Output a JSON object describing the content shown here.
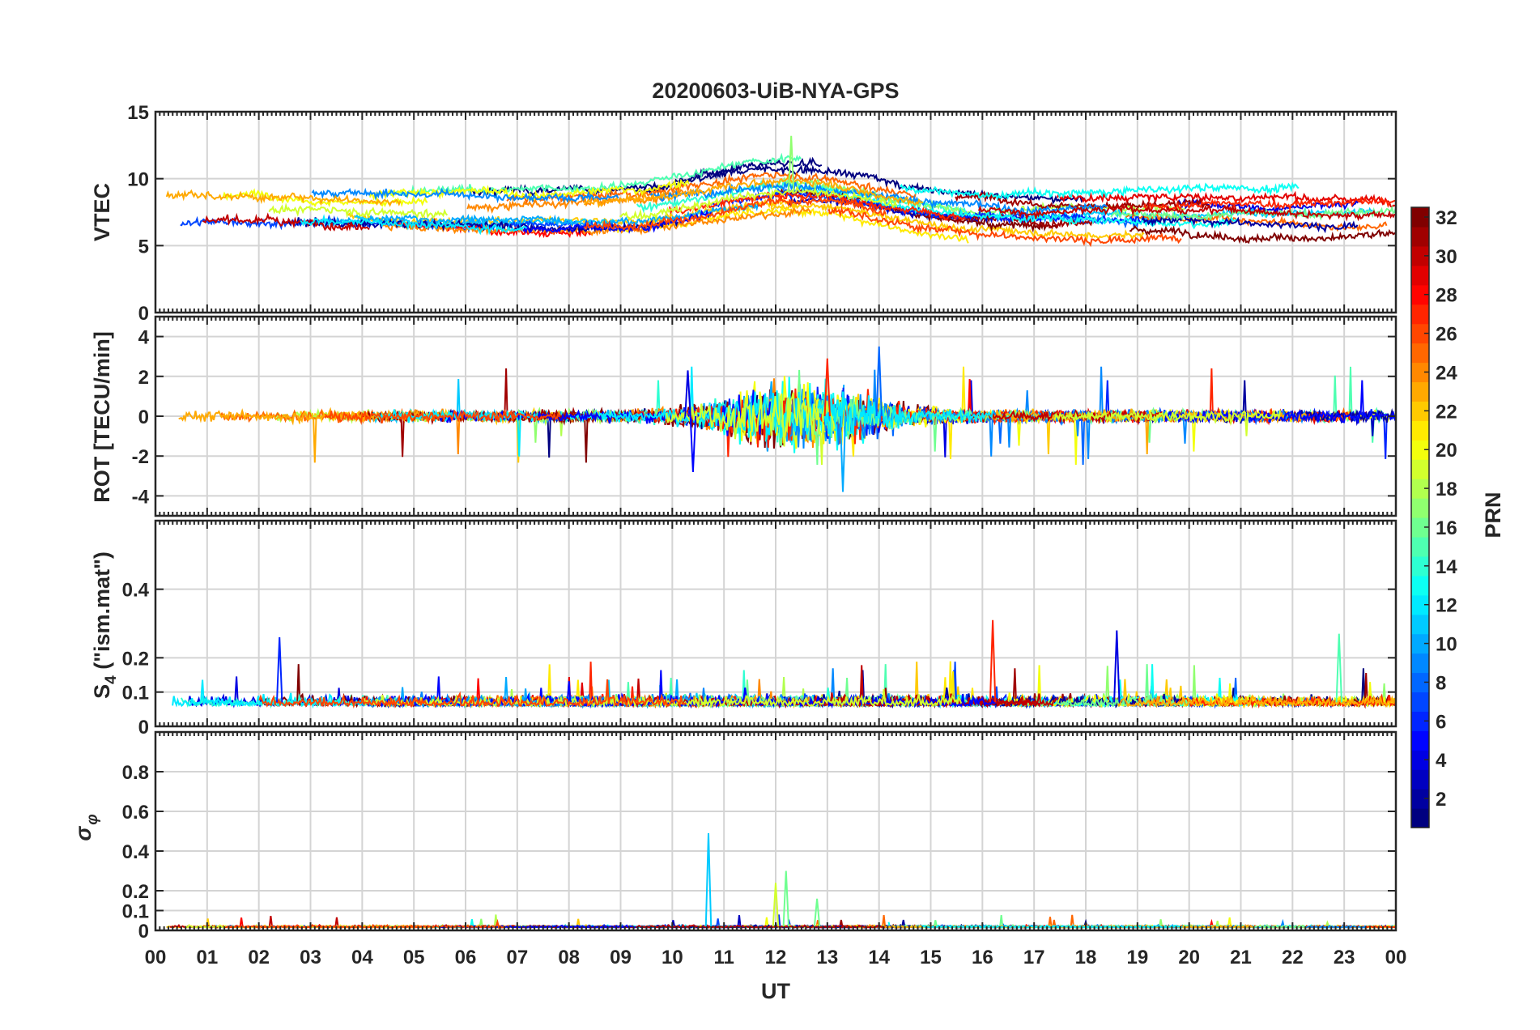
{
  "figure": {
    "title": "20200603-UiB-NYA-GPS",
    "xlabel": "UT",
    "x_ticks": [
      "00",
      "01",
      "02",
      "03",
      "04",
      "05",
      "06",
      "07",
      "08",
      "09",
      "10",
      "11",
      "12",
      "13",
      "14",
      "15",
      "16",
      "17",
      "18",
      "19",
      "20",
      "21",
      "22",
      "23",
      "00"
    ]
  },
  "colorbar": {
    "label": "PRN",
    "colormap": "jet",
    "range": [
      1,
      32
    ],
    "ticks": [
      "2",
      "4",
      "6",
      "8",
      "10",
      "12",
      "14",
      "16",
      "18",
      "20",
      "22",
      "24",
      "26",
      "28",
      "30",
      "32"
    ]
  },
  "chart_data": [
    {
      "type": "line",
      "panel": "vtec",
      "ylabel": "VTEC",
      "ylim": [
        0,
        15
      ],
      "y_ticks": [
        "0",
        "5",
        "10",
        "15"
      ],
      "grid": true,
      "series_note": "one line per PRN satellite, colored by PRN (1-32)",
      "typical_range": [
        5,
        12
      ],
      "peak": {
        "x_hour": 12.3,
        "value": 13.2
      }
    },
    {
      "type": "line",
      "panel": "rot",
      "ylabel": "ROT [TECU/min]",
      "ylim": [
        -5,
        5
      ],
      "y_ticks": [
        "-4",
        "-2",
        "0",
        "2",
        "4"
      ],
      "grid": true,
      "series_note": "one line per PRN satellite, colored by PRN (1-32)",
      "max": {
        "x_hour": 14.0,
        "value": 3.5
      },
      "min": {
        "x_hour": 13.3,
        "value": -3.8
      }
    },
    {
      "type": "line",
      "panel": "s4",
      "ylabel_main": "S",
      "ylabel_sub": "4",
      "ylabel_rest": " (\"ism.mat\")",
      "ylim": [
        0,
        0.6
      ],
      "y_ticks": [
        "0",
        "0.1",
        "0.2",
        "0.4"
      ],
      "grid": true,
      "series_note": "one line per PRN satellite, colored by PRN (1-32)",
      "baseline": 0.07,
      "max": {
        "x_hour": 16.2,
        "value": 0.31
      }
    },
    {
      "type": "line",
      "panel": "sigma_phi",
      "ylabel_main": "σ",
      "ylabel_sub": "φ",
      "ylim": [
        0,
        1
      ],
      "y_ticks": [
        "0",
        "0.1",
        "0.2",
        "0.4",
        "0.6",
        "0.8"
      ],
      "grid": true,
      "series_note": "one line per PRN satellite, colored by PRN (1-32)",
      "baseline": 0.02,
      "max": {
        "x_hour": 10.7,
        "value": 0.49
      }
    }
  ]
}
